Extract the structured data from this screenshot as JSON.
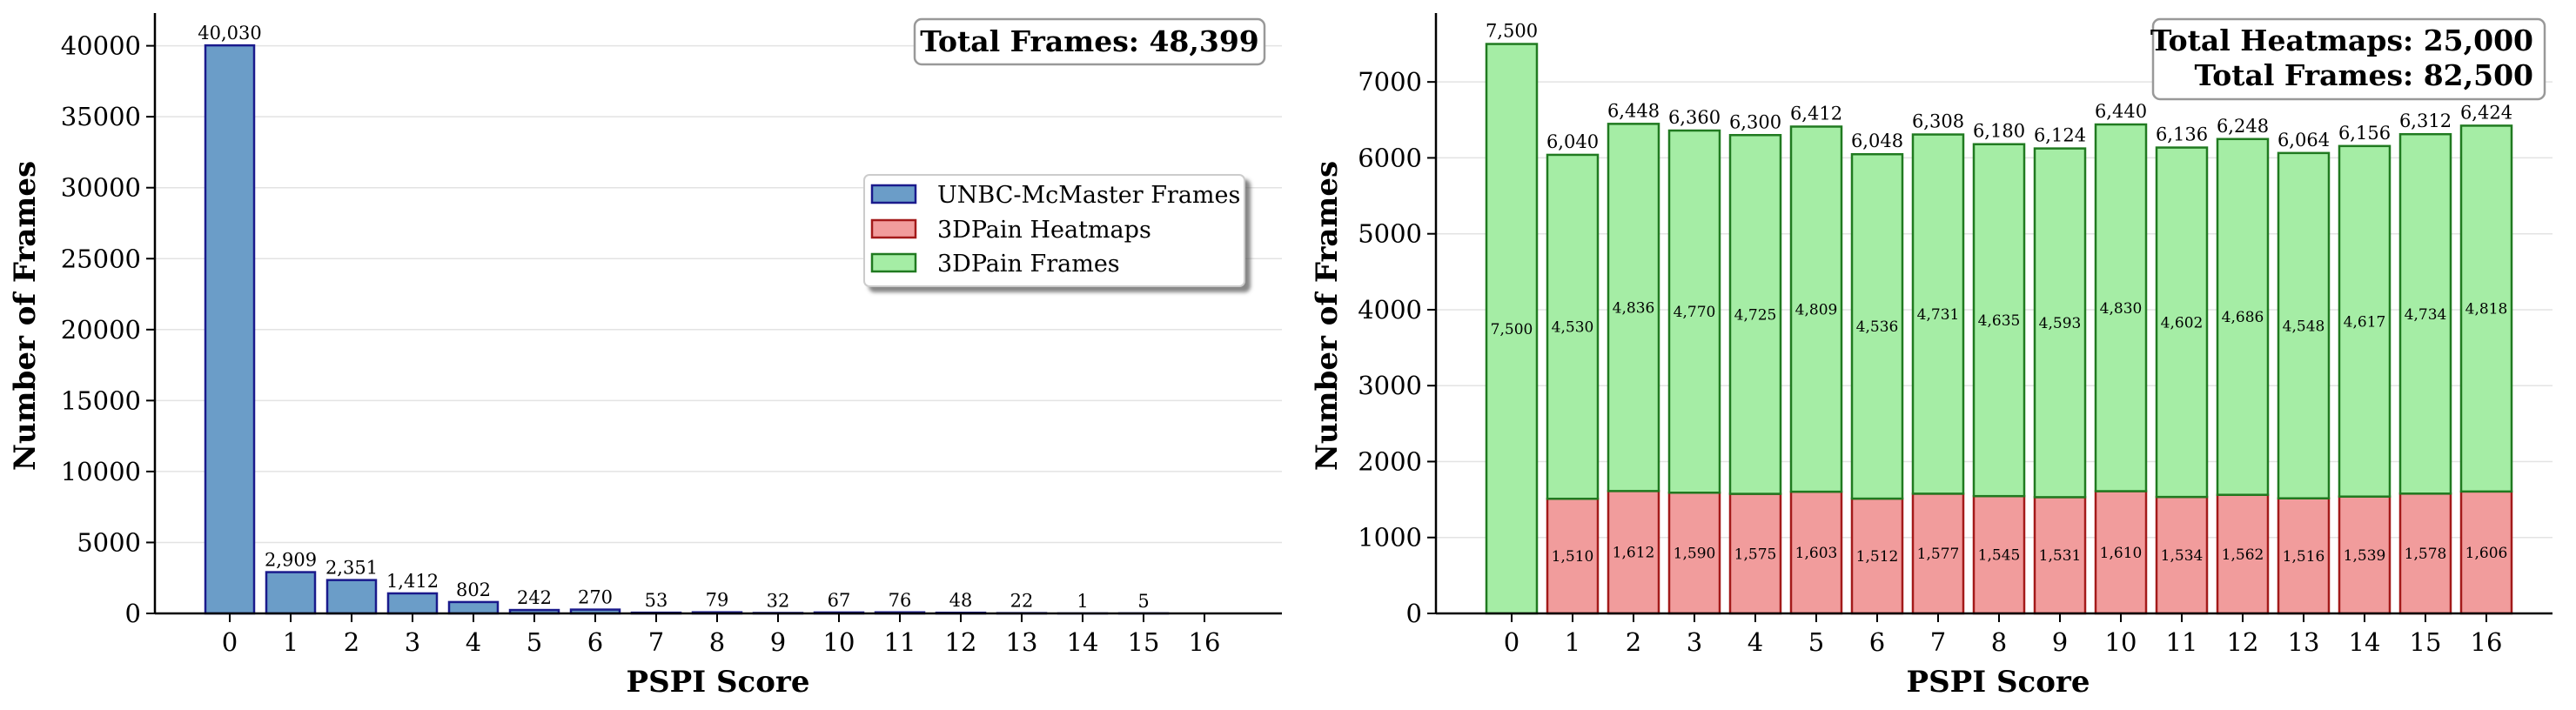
{
  "colors": {
    "unbc_fill": "#6b9dc8",
    "unbc_edge": "#1a1a8c",
    "heat_fill": "#f19c9c",
    "heat_edge": "#a31a1a",
    "frames_fill": "#a5eda5",
    "frames_edge": "#207a20",
    "grid": "#e3e3e3"
  },
  "legend": {
    "unbc": "UNBC-McMaster Frames",
    "heat": "3DPain Heatmaps",
    "frames": "3DPain Frames"
  },
  "chart_data": [
    {
      "type": "bar",
      "xlabel": "PSPI Score",
      "ylabel": "Number of Frames",
      "categories": [
        "0",
        "1",
        "2",
        "3",
        "4",
        "5",
        "6",
        "7",
        "8",
        "9",
        "10",
        "11",
        "12",
        "13",
        "14",
        "15",
        "16"
      ],
      "series": [
        {
          "name": "UNBC-McMaster Frames",
          "values": [
            40030,
            2909,
            2351,
            1412,
            802,
            242,
            270,
            53,
            79,
            32,
            67,
            76,
            48,
            22,
            1,
            5,
            0
          ]
        }
      ],
      "value_labels": [
        "40,030",
        "2,909",
        "2,351",
        "1,412",
        "802",
        "242",
        "270",
        "53",
        "79",
        "32",
        "67",
        "76",
        "48",
        "22",
        "1",
        "5",
        ""
      ],
      "ylim": [
        0,
        42000
      ],
      "yticks": [
        0,
        5000,
        10000,
        15000,
        20000,
        25000,
        30000,
        35000,
        40000
      ],
      "annotation": "Total Frames: 48,399",
      "grid": "horizontal",
      "legend_position": "center-right"
    },
    {
      "type": "bar",
      "stacked": true,
      "xlabel": "PSPI Score",
      "ylabel": "Number of Frames",
      "categories": [
        "0",
        "1",
        "2",
        "3",
        "4",
        "5",
        "6",
        "7",
        "8",
        "9",
        "10",
        "11",
        "12",
        "13",
        "14",
        "15",
        "16"
      ],
      "series": [
        {
          "name": "3DPain Heatmaps",
          "values": [
            0,
            1510,
            1612,
            1590,
            1575,
            1603,
            1512,
            1577,
            1545,
            1531,
            1610,
            1534,
            1562,
            1516,
            1539,
            1578,
            1606
          ]
        },
        {
          "name": "3DPain Frames",
          "values": [
            7500,
            4530,
            4836,
            4770,
            4725,
            4809,
            4536,
            4731,
            4635,
            4593,
            4830,
            4602,
            4686,
            4548,
            4617,
            4734,
            4818
          ]
        }
      ],
      "heat_labels": [
        "",
        "1,510",
        "1,612",
        "1,590",
        "1,575",
        "1,603",
        "1,512",
        "1,577",
        "1,545",
        "1,531",
        "1,610",
        "1,534",
        "1,562",
        "1,516",
        "1,539",
        "1,578",
        "1,606"
      ],
      "frame_labels": [
        "7,500",
        "4,530",
        "4,836",
        "4,770",
        "4,725",
        "4,809",
        "4,536",
        "4,731",
        "4,635",
        "4,593",
        "4,830",
        "4,602",
        "4,686",
        "4,548",
        "4,617",
        "4,734",
        "4,818"
      ],
      "total_labels": [
        "7,500",
        "6,040",
        "6,448",
        "6,360",
        "6,300",
        "6,412",
        "6,048",
        "6,308",
        "6,180",
        "6,124",
        "6,440",
        "6,136",
        "6,248",
        "6,064",
        "6,156",
        "6,312",
        "6,424"
      ],
      "ylim": [
        0,
        7850
      ],
      "yticks": [
        0,
        1000,
        2000,
        3000,
        4000,
        5000,
        6000,
        7000
      ],
      "annotation_lines": [
        "Total Heatmaps: 25,000",
        "Total Frames: 82,500"
      ],
      "grid": "horizontal"
    }
  ]
}
